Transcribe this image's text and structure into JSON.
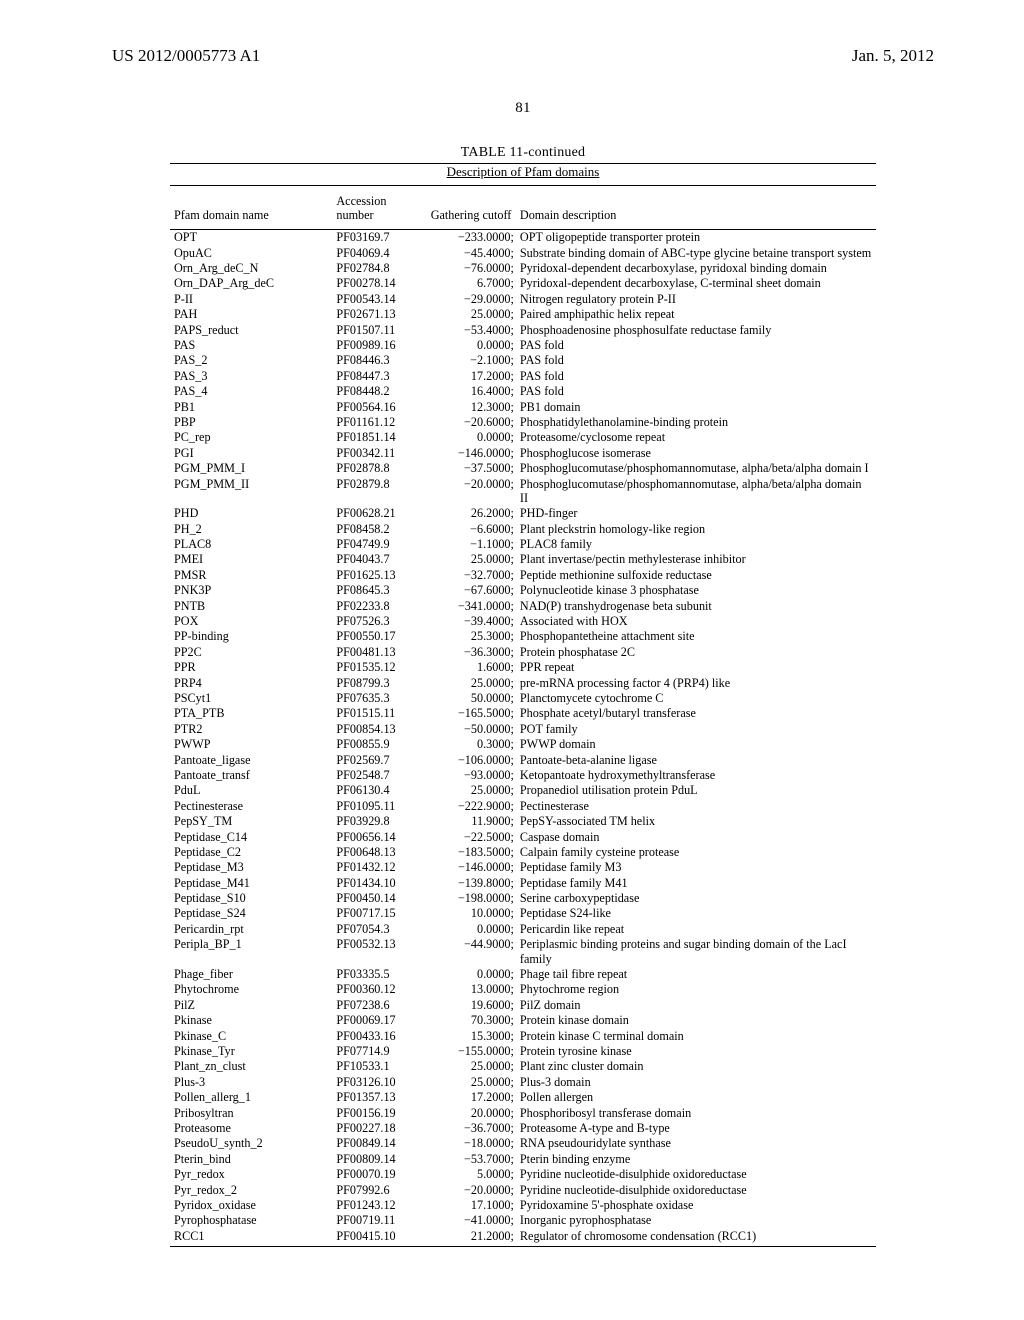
{
  "header": {
    "doc_number": "US 2012/0005773 A1",
    "pub_date": "Jan. 5, 2012"
  },
  "page_number": "81",
  "table": {
    "caption": "TABLE 11-continued",
    "subcaption": "Description of Pfam domains",
    "columns": {
      "name": "Pfam domain name",
      "accession": "Accession number",
      "cutoff": "Gathering cutoff",
      "desc": "Domain description"
    },
    "rows": [
      {
        "n": "OPT",
        "a": "PF03169.7",
        "c": "−233.0000;",
        "d": "OPT oligopeptide transporter protein"
      },
      {
        "n": "OpuAC",
        "a": "PF04069.4",
        "c": "−45.4000;",
        "d": "Substrate binding domain of ABC-type glycine betaine transport system"
      },
      {
        "n": "Orn_Arg_deC_N",
        "a": "PF02784.8",
        "c": "−76.0000;",
        "d": "Pyridoxal-dependent decarboxylase, pyridoxal binding domain"
      },
      {
        "n": "Orn_DAP_Arg_deC",
        "a": "PF00278.14",
        "c": "6.7000;",
        "d": "Pyridoxal-dependent decarboxylase, C-terminal sheet domain"
      },
      {
        "n": "P-II",
        "a": "PF00543.14",
        "c": "−29.0000;",
        "d": "Nitrogen regulatory protein P-II"
      },
      {
        "n": "PAH",
        "a": "PF02671.13",
        "c": "25.0000;",
        "d": "Paired amphipathic helix repeat"
      },
      {
        "n": "PAPS_reduct",
        "a": "PF01507.11",
        "c": "−53.4000;",
        "d": "Phosphoadenosine phosphosulfate reductase family"
      },
      {
        "n": "PAS",
        "a": "PF00989.16",
        "c": "0.0000;",
        "d": "PAS fold"
      },
      {
        "n": "PAS_2",
        "a": "PF08446.3",
        "c": "−2.1000;",
        "d": "PAS fold"
      },
      {
        "n": "PAS_3",
        "a": "PF08447.3",
        "c": "17.2000;",
        "d": "PAS fold"
      },
      {
        "n": "PAS_4",
        "a": "PF08448.2",
        "c": "16.4000;",
        "d": "PAS fold"
      },
      {
        "n": "PB1",
        "a": "PF00564.16",
        "c": "12.3000;",
        "d": "PB1 domain"
      },
      {
        "n": "PBP",
        "a": "PF01161.12",
        "c": "−20.6000;",
        "d": "Phosphatidylethanolamine-binding protein"
      },
      {
        "n": "PC_rep",
        "a": "PF01851.14",
        "c": "0.0000;",
        "d": "Proteasome/cyclosome repeat"
      },
      {
        "n": "PGI",
        "a": "PF00342.11",
        "c": "−146.0000;",
        "d": "Phosphoglucose isomerase"
      },
      {
        "n": "PGM_PMM_I",
        "a": "PF02878.8",
        "c": "−37.5000;",
        "d": "Phosphoglucomutase/phosphomannomutase, alpha/beta/alpha domain I"
      },
      {
        "n": "PGM_PMM_II",
        "a": "PF02879.8",
        "c": "−20.0000;",
        "d": "Phosphoglucomutase/phosphomannomutase, alpha/beta/alpha domain II"
      },
      {
        "n": "PHD",
        "a": "PF00628.21",
        "c": "26.2000;",
        "d": "PHD-finger"
      },
      {
        "n": "PH_2",
        "a": "PF08458.2",
        "c": "−6.6000;",
        "d": "Plant pleckstrin homology-like region"
      },
      {
        "n": "PLAC8",
        "a": "PF04749.9",
        "c": "−1.1000;",
        "d": "PLAC8 family"
      },
      {
        "n": "PMEI",
        "a": "PF04043.7",
        "c": "25.0000;",
        "d": "Plant invertase/pectin methylesterase inhibitor"
      },
      {
        "n": "PMSR",
        "a": "PF01625.13",
        "c": "−32.7000;",
        "d": "Peptide methionine sulfoxide reductase"
      },
      {
        "n": "PNK3P",
        "a": "PF08645.3",
        "c": "−67.6000;",
        "d": "Polynucleotide kinase 3 phosphatase"
      },
      {
        "n": "PNTB",
        "a": "PF02233.8",
        "c": "−341.0000;",
        "d": "NAD(P) transhydrogenase beta subunit"
      },
      {
        "n": "POX",
        "a": "PF07526.3",
        "c": "−39.4000;",
        "d": "Associated with HOX"
      },
      {
        "n": "PP-binding",
        "a": "PF00550.17",
        "c": "25.3000;",
        "d": "Phosphopantetheine attachment site"
      },
      {
        "n": "PP2C",
        "a": "PF00481.13",
        "c": "−36.3000;",
        "d": "Protein phosphatase 2C"
      },
      {
        "n": "PPR",
        "a": "PF01535.12",
        "c": "1.6000;",
        "d": "PPR repeat"
      },
      {
        "n": "PRP4",
        "a": "PF08799.3",
        "c": "25.0000;",
        "d": "pre-mRNA processing factor 4 (PRP4) like"
      },
      {
        "n": "PSCyt1",
        "a": "PF07635.3",
        "c": "50.0000;",
        "d": "Planctomycete cytochrome C"
      },
      {
        "n": "PTA_PTB",
        "a": "PF01515.11",
        "c": "−165.5000;",
        "d": "Phosphate acetyl/butaryl transferase"
      },
      {
        "n": "PTR2",
        "a": "PF00854.13",
        "c": "−50.0000;",
        "d": "POT family"
      },
      {
        "n": "PWWP",
        "a": "PF00855.9",
        "c": "0.3000;",
        "d": "PWWP domain"
      },
      {
        "n": "Pantoate_ligase",
        "a": "PF02569.7",
        "c": "−106.0000;",
        "d": "Pantoate-beta-alanine ligase"
      },
      {
        "n": "Pantoate_transf",
        "a": "PF02548.7",
        "c": "−93.0000;",
        "d": "Ketopantoate hydroxymethyltransferase"
      },
      {
        "n": "PduL",
        "a": "PF06130.4",
        "c": "25.0000;",
        "d": "Propanediol utilisation protein PduL"
      },
      {
        "n": "Pectinesterase",
        "a": "PF01095.11",
        "c": "−222.9000;",
        "d": "Pectinesterase"
      },
      {
        "n": "PepSY_TM",
        "a": "PF03929.8",
        "c": "11.9000;",
        "d": "PepSY-associated TM helix"
      },
      {
        "n": "Peptidase_C14",
        "a": "PF00656.14",
        "c": "−22.5000;",
        "d": "Caspase domain"
      },
      {
        "n": "Peptidase_C2",
        "a": "PF00648.13",
        "c": "−183.5000;",
        "d": "Calpain family cysteine protease"
      },
      {
        "n": "Peptidase_M3",
        "a": "PF01432.12",
        "c": "−146.0000;",
        "d": "Peptidase family M3"
      },
      {
        "n": "Peptidase_M41",
        "a": "PF01434.10",
        "c": "−139.8000;",
        "d": "Peptidase family M41"
      },
      {
        "n": "Peptidase_S10",
        "a": "PF00450.14",
        "c": "−198.0000;",
        "d": "Serine carboxypeptidase"
      },
      {
        "n": "Peptidase_S24",
        "a": "PF00717.15",
        "c": "10.0000;",
        "d": "Peptidase S24-like"
      },
      {
        "n": "Pericardin_rpt",
        "a": "PF07054.3",
        "c": "0.0000;",
        "d": "Pericardin like repeat"
      },
      {
        "n": "Peripla_BP_1",
        "a": "PF00532.13",
        "c": "−44.9000;",
        "d": "Periplasmic binding proteins and sugar binding domain of the LacI family"
      },
      {
        "n": "Phage_fiber",
        "a": "PF03335.5",
        "c": "0.0000;",
        "d": "Phage tail fibre repeat"
      },
      {
        "n": "Phytochrome",
        "a": "PF00360.12",
        "c": "13.0000;",
        "d": "Phytochrome region"
      },
      {
        "n": "PilZ",
        "a": "PF07238.6",
        "c": "19.6000;",
        "d": "PilZ domain"
      },
      {
        "n": "Pkinase",
        "a": "PF00069.17",
        "c": "70.3000;",
        "d": "Protein kinase domain"
      },
      {
        "n": "Pkinase_C",
        "a": "PF00433.16",
        "c": "15.3000;",
        "d": "Protein kinase C terminal domain"
      },
      {
        "n": "Pkinase_Tyr",
        "a": "PF07714.9",
        "c": "−155.0000;",
        "d": "Protein tyrosine kinase"
      },
      {
        "n": "Plant_zn_clust",
        "a": "PF10533.1",
        "c": "25.0000;",
        "d": "Plant zinc cluster domain"
      },
      {
        "n": "Plus-3",
        "a": "PF03126.10",
        "c": "25.0000;",
        "d": "Plus-3 domain"
      },
      {
        "n": "Pollen_allerg_1",
        "a": "PF01357.13",
        "c": "17.2000;",
        "d": "Pollen allergen"
      },
      {
        "n": "Pribosyltran",
        "a": "PF00156.19",
        "c": "20.0000;",
        "d": "Phosphoribosyl transferase domain"
      },
      {
        "n": "Proteasome",
        "a": "PF00227.18",
        "c": "−36.7000;",
        "d": "Proteasome A-type and B-type"
      },
      {
        "n": "PseudoU_synth_2",
        "a": "PF00849.14",
        "c": "−18.0000;",
        "d": "RNA pseudouridylate synthase"
      },
      {
        "n": "Pterin_bind",
        "a": "PF00809.14",
        "c": "−53.7000;",
        "d": "Pterin binding enzyme"
      },
      {
        "n": "Pyr_redox",
        "a": "PF00070.19",
        "c": "5.0000;",
        "d": "Pyridine nucleotide-disulphide oxidoreductase"
      },
      {
        "n": "Pyr_redox_2",
        "a": "PF07992.6",
        "c": "−20.0000;",
        "d": "Pyridine nucleotide-disulphide oxidoreductase"
      },
      {
        "n": "Pyridox_oxidase",
        "a": "PF01243.12",
        "c": "17.1000;",
        "d": "Pyridoxamine 5'-phosphate oxidase"
      },
      {
        "n": "Pyrophosphatase",
        "a": "PF00719.11",
        "c": "−41.0000;",
        "d": "Inorganic pyrophosphatase"
      },
      {
        "n": "RCC1",
        "a": "PF00415.10",
        "c": "21.2000;",
        "d": "Regulator of chromosome condensation (RCC1)"
      }
    ]
  }
}
